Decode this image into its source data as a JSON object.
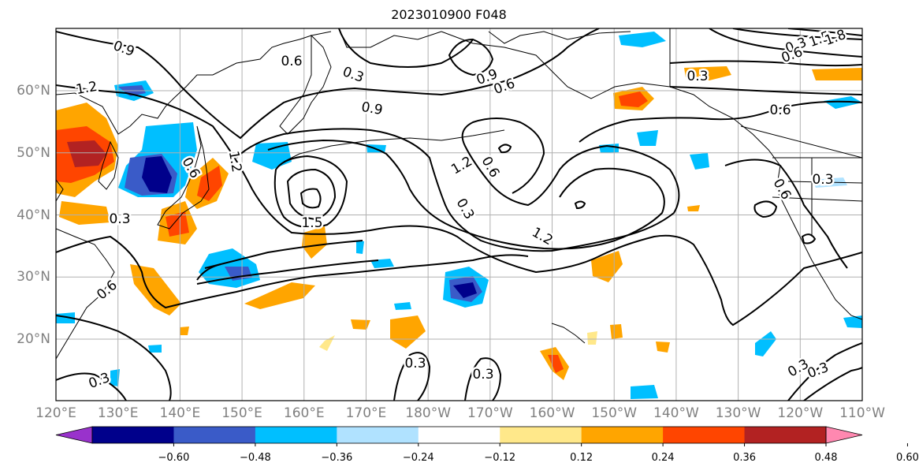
{
  "title": "2023010900 F048",
  "lat_labels": [
    "60°N",
    "50°N",
    "40°N",
    "30°N",
    "20°N"
  ],
  "lat_values": [
    60,
    50,
    40,
    30,
    20
  ],
  "lon_labels": [
    "120°E",
    "130°E",
    "140°E",
    "150°E",
    "160°E",
    "170°E",
    "180°W",
    "170°W",
    "160°W",
    "150°W",
    "140°W",
    "130°W",
    "120°W",
    "110°W"
  ],
  "colorbar": {
    "colors": [
      "#9932CC",
      "#00008B",
      "#3A5BC8",
      "#00BFFF",
      "#B0E2FF",
      "#FFFFFF",
      "#FFE88A",
      "#FFA500",
      "#FF4500",
      "#B22222",
      "#FF88B0"
    ],
    "ticks": [
      "−0.60",
      "−0.48",
      "−0.36",
      "−0.24",
      "−0.12",
      "0.12",
      "0.24",
      "0.36",
      "0.48",
      "0.60"
    ]
  },
  "contour_labels": [
    "0.9",
    "0.6",
    "0.3",
    "0.9",
    "1.2",
    "1.2",
    "0.3",
    "1.2",
    "0.6",
    "0.3",
    "1.5",
    "0.3",
    "0.6",
    "0.3",
    "1.2",
    "0.3",
    "0.3",
    "0.6",
    "0.6",
    "0.3",
    "0.3",
    "0.6",
    "0.3",
    "0.3",
    "1.5",
    "0.6",
    "0.6",
    "0.9",
    "1.8"
  ],
  "colors": {
    "grid": "#b0b0b0",
    "contour": "#000000",
    "coast": "#000000"
  }
}
